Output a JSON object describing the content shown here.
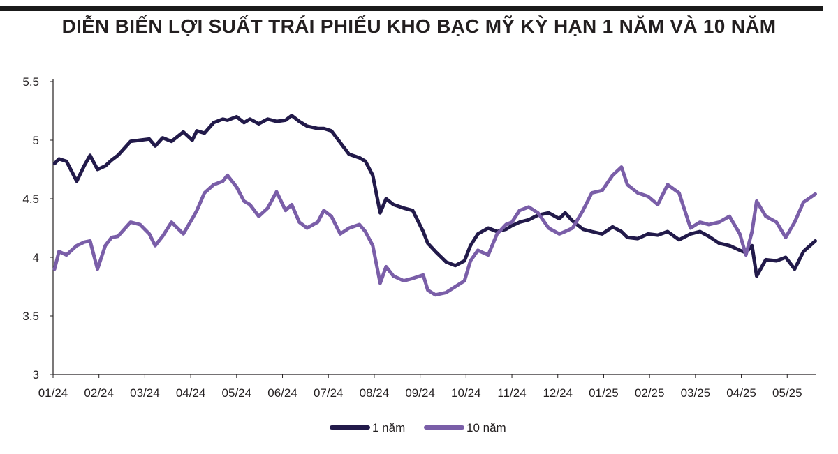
{
  "title": "DIỄN BIẾN LỢI SUẤT TRÁI PHIẾU KHO BẠC MỸ KỲ HẠN 1 NĂM VÀ 10 NĂM",
  "colors": {
    "background": "#ffffff",
    "text": "#231f20",
    "rule": "#1a1a1a",
    "one_year": "#221a4a",
    "ten_year": "#7a5ea8"
  },
  "chart_data": {
    "type": "line",
    "title": "DIỄN BIẾN LỢI SUẤT TRÁI PHIẾU KHO BẠC MỸ KỲ HẠN 1 NĂM VÀ 10 NĂM",
    "xlabel": "",
    "ylabel": "",
    "x_tick_labels": [
      "01/24",
      "02/24",
      "03/24",
      "04/24",
      "05/24",
      "06/24",
      "07/24",
      "08/24",
      "09/24",
      "10/24",
      "11/24",
      "12/24",
      "01/25",
      "02/25",
      "03/25",
      "04/25",
      "05/25"
    ],
    "y_tick_labels": [
      "3",
      "3.5",
      "4",
      "4.5",
      "5",
      "5.5"
    ],
    "ylim": [
      3,
      5.5
    ],
    "xlim": [
      "2024-01",
      "2025-05-20"
    ],
    "grid": false,
    "legend_position": "bottom-center",
    "series": [
      {
        "name": "1 năm",
        "color": "#221a4a",
        "x": [
          "2024-01-02",
          "2024-01-05",
          "2024-01-10",
          "2024-01-17",
          "2024-01-22",
          "2024-01-26",
          "2024-01-31",
          "2024-02-05",
          "2024-02-09",
          "2024-02-13",
          "2024-02-21",
          "2024-02-27",
          "2024-03-04",
          "2024-03-08",
          "2024-03-13",
          "2024-03-19",
          "2024-03-27",
          "2024-04-02",
          "2024-04-05",
          "2024-04-10",
          "2024-04-16",
          "2024-04-22",
          "2024-04-25",
          "2024-05-01",
          "2024-05-06",
          "2024-05-10",
          "2024-05-16",
          "2024-05-22",
          "2024-05-28",
          "2024-06-03",
          "2024-06-07",
          "2024-06-12",
          "2024-06-17",
          "2024-06-24",
          "2024-06-28",
          "2024-07-03",
          "2024-07-09",
          "2024-07-15",
          "2024-07-22",
          "2024-07-26",
          "2024-07-31",
          "2024-08-05",
          "2024-08-09",
          "2024-08-14",
          "2024-08-21",
          "2024-08-27",
          "2024-09-03",
          "2024-09-06",
          "2024-09-11",
          "2024-09-18",
          "2024-09-24",
          "2024-09-30",
          "2024-10-04",
          "2024-10-09",
          "2024-10-16",
          "2024-10-22",
          "2024-10-28",
          "2024-11-01",
          "2024-11-06",
          "2024-11-12",
          "2024-11-18",
          "2024-11-25",
          "2024-12-02",
          "2024-12-06",
          "2024-12-11",
          "2024-12-18",
          "2024-12-24",
          "2024-12-31",
          "2025-01-07",
          "2025-01-13",
          "2025-01-17",
          "2025-01-24",
          "2025-01-31",
          "2025-02-06",
          "2025-02-12",
          "2025-02-19",
          "2025-02-26",
          "2025-03-04",
          "2025-03-10",
          "2025-03-17",
          "2025-03-24",
          "2025-03-31",
          "2025-04-04",
          "2025-04-08",
          "2025-04-11",
          "2025-04-17",
          "2025-04-24",
          "2025-04-30",
          "2025-05-06",
          "2025-05-12",
          "2025-05-20"
        ],
        "y": [
          4.8,
          4.84,
          4.82,
          4.65,
          4.78,
          4.87,
          4.75,
          4.78,
          4.83,
          4.87,
          4.99,
          5.0,
          5.01,
          4.95,
          5.02,
          4.99,
          5.07,
          5.0,
          5.08,
          5.06,
          5.15,
          5.18,
          5.17,
          5.2,
          5.15,
          5.18,
          5.14,
          5.18,
          5.16,
          5.17,
          5.21,
          5.16,
          5.12,
          5.1,
          5.1,
          5.08,
          4.98,
          4.88,
          4.85,
          4.82,
          4.7,
          4.38,
          4.5,
          4.45,
          4.42,
          4.4,
          4.22,
          4.12,
          4.05,
          3.96,
          3.93,
          3.97,
          4.1,
          4.2,
          4.25,
          4.22,
          4.24,
          4.27,
          4.3,
          4.32,
          4.36,
          4.38,
          4.33,
          4.38,
          4.31,
          4.24,
          4.22,
          4.2,
          4.26,
          4.22,
          4.17,
          4.16,
          4.2,
          4.19,
          4.22,
          4.15,
          4.2,
          4.22,
          4.18,
          4.12,
          4.1,
          4.06,
          4.04,
          4.1,
          3.84,
          3.98,
          3.97,
          4.0,
          3.9,
          4.05,
          4.14
        ]
      },
      {
        "name": "10 năm",
        "color": "#7a5ea8",
        "x": [
          "2024-01-02",
          "2024-01-05",
          "2024-01-10",
          "2024-01-17",
          "2024-01-22",
          "2024-01-26",
          "2024-01-31",
          "2024-02-05",
          "2024-02-09",
          "2024-02-13",
          "2024-02-21",
          "2024-02-27",
          "2024-03-04",
          "2024-03-08",
          "2024-03-13",
          "2024-03-19",
          "2024-03-27",
          "2024-04-02",
          "2024-04-05",
          "2024-04-10",
          "2024-04-16",
          "2024-04-22",
          "2024-04-25",
          "2024-05-01",
          "2024-05-06",
          "2024-05-10",
          "2024-05-16",
          "2024-05-22",
          "2024-05-28",
          "2024-06-03",
          "2024-06-07",
          "2024-06-12",
          "2024-06-17",
          "2024-06-24",
          "2024-06-28",
          "2024-07-03",
          "2024-07-09",
          "2024-07-15",
          "2024-07-22",
          "2024-07-26",
          "2024-07-31",
          "2024-08-05",
          "2024-08-09",
          "2024-08-14",
          "2024-08-21",
          "2024-08-27",
          "2024-09-03",
          "2024-09-06",
          "2024-09-11",
          "2024-09-18",
          "2024-09-24",
          "2024-09-30",
          "2024-10-04",
          "2024-10-09",
          "2024-10-16",
          "2024-10-22",
          "2024-10-28",
          "2024-11-01",
          "2024-11-06",
          "2024-11-12",
          "2024-11-18",
          "2024-11-25",
          "2024-12-02",
          "2024-12-06",
          "2024-12-11",
          "2024-12-18",
          "2024-12-24",
          "2024-12-31",
          "2025-01-07",
          "2025-01-13",
          "2025-01-17",
          "2025-01-24",
          "2025-01-31",
          "2025-02-06",
          "2025-02-12",
          "2025-02-19",
          "2025-02-26",
          "2025-03-04",
          "2025-03-10",
          "2025-03-17",
          "2025-03-24",
          "2025-03-31",
          "2025-04-04",
          "2025-04-08",
          "2025-04-11",
          "2025-04-17",
          "2025-04-24",
          "2025-04-30",
          "2025-05-06",
          "2025-05-12",
          "2025-05-20"
        ],
        "y": [
          3.9,
          4.05,
          4.02,
          4.1,
          4.13,
          4.14,
          3.9,
          4.1,
          4.17,
          4.18,
          4.3,
          4.28,
          4.2,
          4.1,
          4.18,
          4.3,
          4.2,
          4.33,
          4.4,
          4.55,
          4.62,
          4.65,
          4.7,
          4.6,
          4.48,
          4.45,
          4.35,
          4.42,
          4.56,
          4.4,
          4.45,
          4.3,
          4.25,
          4.3,
          4.4,
          4.35,
          4.2,
          4.25,
          4.28,
          4.22,
          4.1,
          3.78,
          3.92,
          3.84,
          3.8,
          3.82,
          3.85,
          3.72,
          3.68,
          3.7,
          3.75,
          3.8,
          3.97,
          4.06,
          4.02,
          4.2,
          4.28,
          4.3,
          4.4,
          4.43,
          4.38,
          4.25,
          4.2,
          4.22,
          4.25,
          4.4,
          4.55,
          4.57,
          4.7,
          4.77,
          4.62,
          4.55,
          4.52,
          4.45,
          4.62,
          4.55,
          4.25,
          4.3,
          4.28,
          4.3,
          4.35,
          4.2,
          4.02,
          4.22,
          4.48,
          4.35,
          4.3,
          4.17,
          4.3,
          4.47,
          4.54
        ]
      }
    ]
  },
  "legend": [
    {
      "label": "1 năm",
      "color": "#221a4a"
    },
    {
      "label": "10 năm",
      "color": "#7a5ea8"
    }
  ]
}
